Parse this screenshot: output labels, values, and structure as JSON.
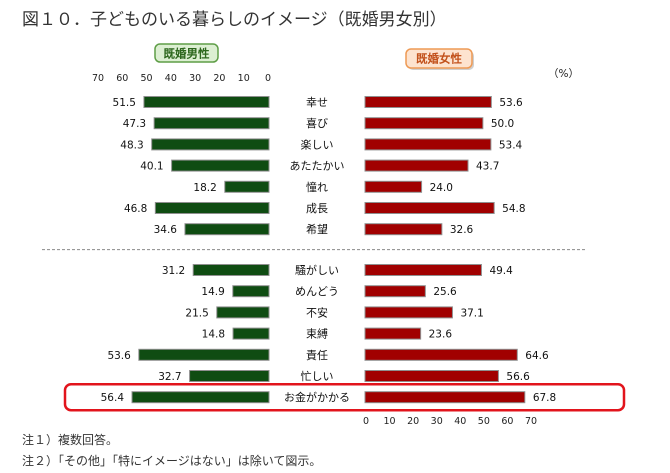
{
  "colors": {
    "men_bar": "#0f4c12",
    "women_bar": "#a10000",
    "bar_edge": "#8f8f8f",
    "men_legend_fill": "#dcefd2",
    "men_legend_border": "#5f9e47",
    "men_legend_text": "#2c661c",
    "women_legend_fill": "#fde3cf",
    "women_legend_border": "#ee9a55",
    "women_legend_text": "#c2511b",
    "highlight": "#e2141c",
    "separator": "#8a8a8a"
  },
  "notes": [
    "注１）複数回答。",
    "注２）「その他」「特にイメージはない」は除いて図示。"
  ],
  "chart_data": {
    "type": "bar",
    "title": "図１０．子どものいる暮らしのイメージ（既婚男女別）",
    "unit": "（%）",
    "categories": [
      "幸せ",
      "喜び",
      "楽しい",
      "あたたかい",
      "憧れ",
      "成長",
      "希望",
      "騒がしい",
      "めんどう",
      "不安",
      "束縛",
      "責任",
      "忙しい",
      "お金がかかる"
    ],
    "series": [
      {
        "name": "既婚男性",
        "values": [
          51.5,
          47.3,
          48.3,
          40.1,
          18.2,
          46.8,
          34.6,
          31.2,
          14.9,
          21.5,
          14.8,
          53.6,
          32.7,
          56.4
        ]
      },
      {
        "name": "既婚女性",
        "values": [
          53.6,
          50.0,
          53.4,
          43.7,
          24.0,
          54.8,
          32.6,
          49.4,
          25.6,
          37.1,
          23.6,
          64.6,
          56.6,
          67.8
        ]
      }
    ],
    "xlim": [
      0,
      70
    ],
    "xticks": [
      0,
      10,
      20,
      30,
      40,
      50,
      60,
      70
    ],
    "separator_after": "希望",
    "highlighted_category": "お金がかかる",
    "grid": false,
    "legend_position": "top"
  }
}
